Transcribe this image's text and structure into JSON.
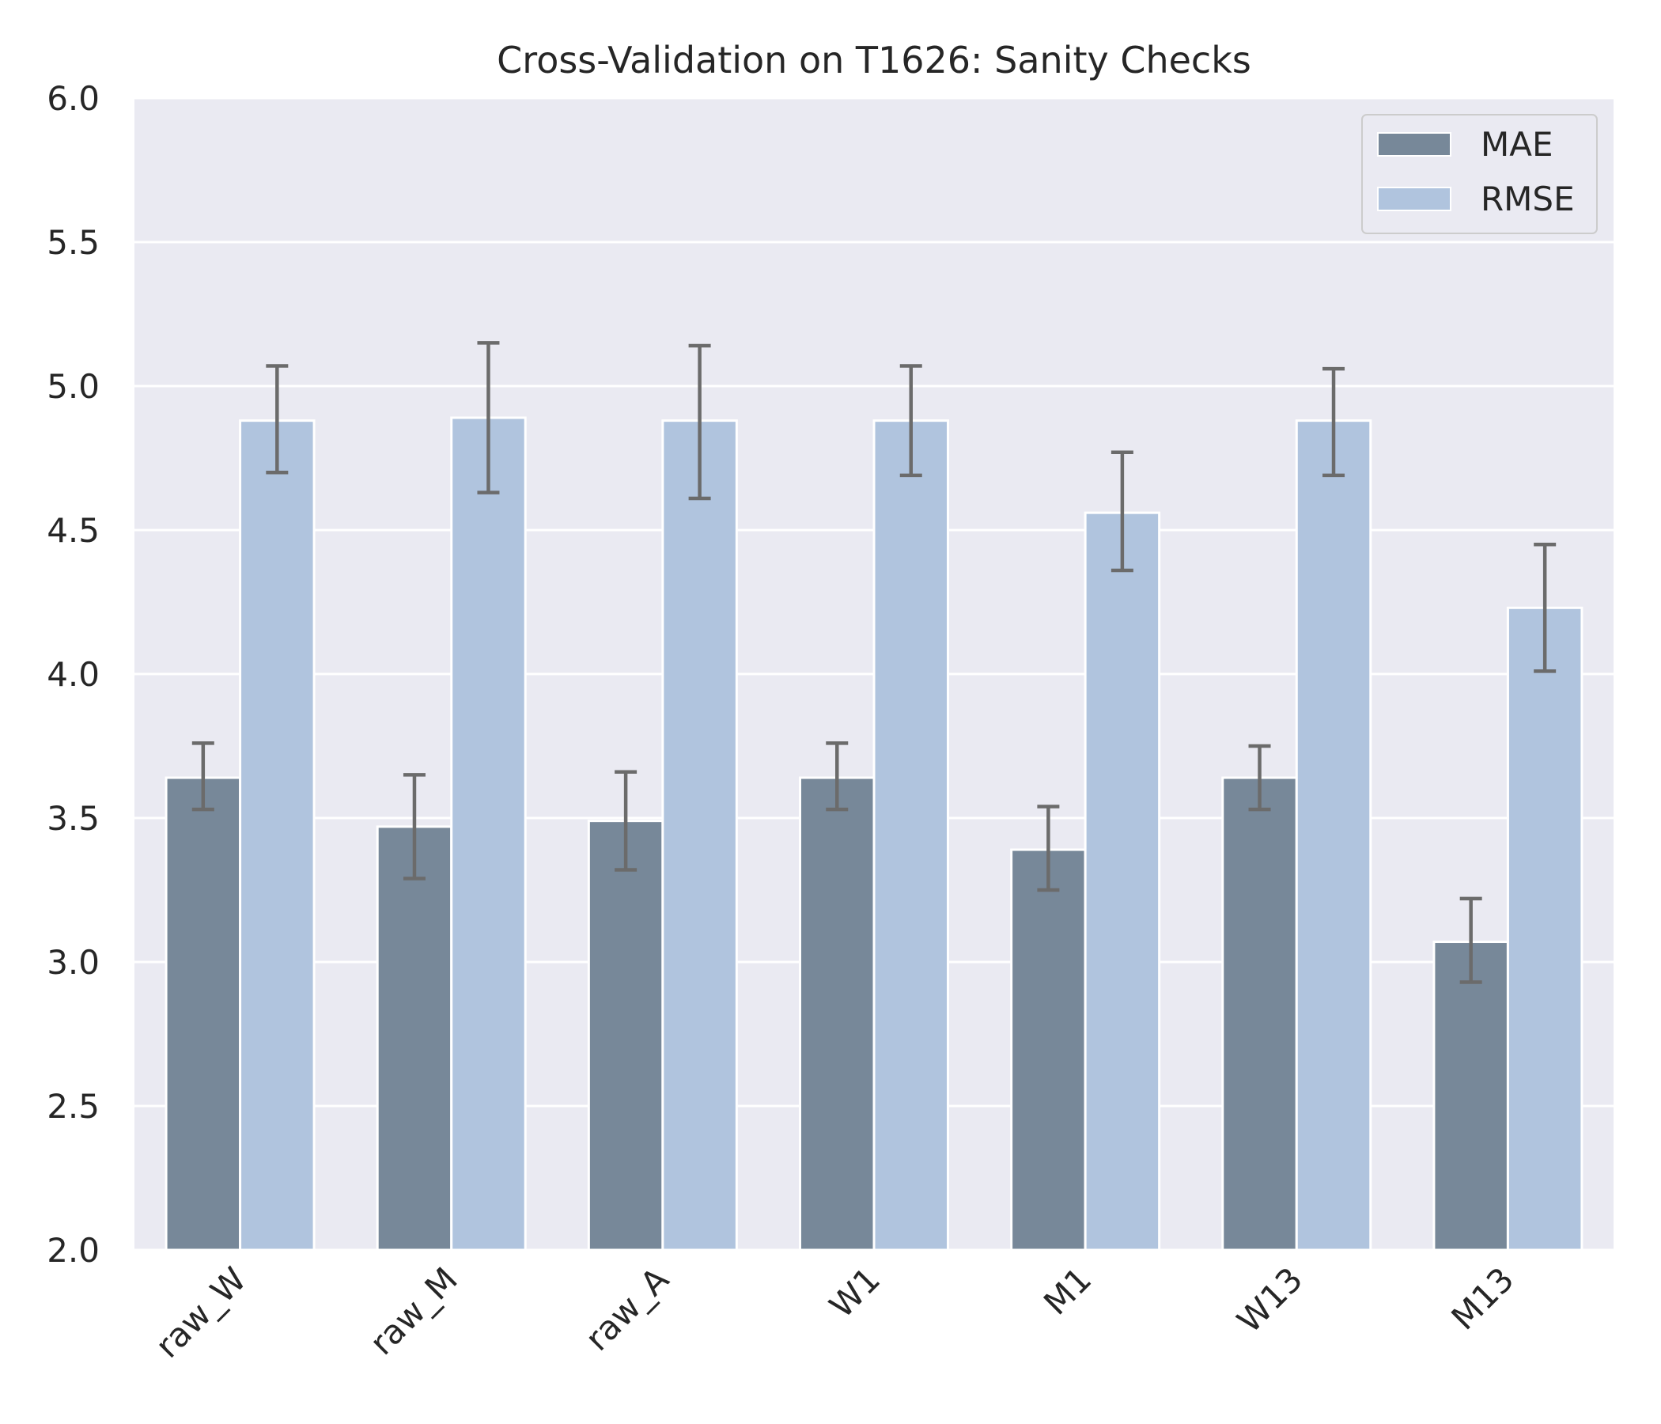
{
  "chart_data": {
    "type": "bar",
    "title": "Cross-Validation on T1626: Sanity Checks",
    "xlabel": "",
    "ylabel": "",
    "ylim": [
      2.0,
      6.0
    ],
    "yticks": [
      "2.0",
      "2.5",
      "3.0",
      "3.5",
      "4.0",
      "4.5",
      "5.0",
      "5.5",
      "6.0"
    ],
    "categories": [
      "raw_W",
      "raw_M",
      "raw_A",
      "W1",
      "M1",
      "W13",
      "M13"
    ],
    "series": [
      {
        "name": "MAE",
        "color": "#778899",
        "values": [
          3.64,
          3.47,
          3.49,
          3.64,
          3.39,
          3.64,
          3.07
        ],
        "err_low": [
          3.53,
          3.29,
          3.32,
          3.53,
          3.25,
          3.53,
          2.93
        ],
        "err_high": [
          3.76,
          3.65,
          3.66,
          3.76,
          3.54,
          3.75,
          3.22
        ]
      },
      {
        "name": "RMSE",
        "color": "#b0c4de",
        "values": [
          4.88,
          4.89,
          4.88,
          4.88,
          4.56,
          4.88,
          4.23
        ],
        "err_low": [
          4.7,
          4.63,
          4.61,
          4.69,
          4.36,
          4.69,
          4.01
        ],
        "err_high": [
          5.07,
          5.15,
          5.14,
          5.07,
          4.77,
          5.06,
          4.45
        ]
      }
    ],
    "grid": true,
    "legend_position": "top-right",
    "background_color": "#eaeaf2",
    "error_bar_color": "#6b6b6b"
  }
}
